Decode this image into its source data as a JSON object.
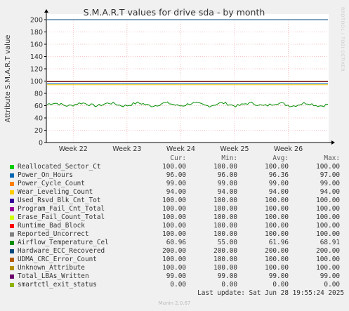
{
  "chart_data": {
    "type": "line",
    "title": "S.M.A.R.T values for drive sda - by month",
    "ylabel": "Attribute S.M.A.R.T value",
    "xlabel": "",
    "ylim": [
      0,
      200
    ],
    "yticks": [
      0,
      20,
      40,
      60,
      80,
      100,
      120,
      140,
      160,
      180,
      200
    ],
    "xticks": [
      "Week 22",
      "Week 23",
      "Week 24",
      "Week 25",
      "Week 26"
    ],
    "x_range_weeks": [
      21.5,
      26.75
    ],
    "grid": true,
    "series": [
      {
        "name": "Reallocated_Sector_Ct",
        "color": "#00cc00",
        "cur": "100.00",
        "min": "100.00",
        "avg": "100.00",
        "max": "100.00",
        "value": 100
      },
      {
        "name": "Power_On_Hours",
        "color": "#0066b3",
        "cur": "96.00",
        "min": "96.00",
        "avg": "96.36",
        "max": "97.00",
        "value": 96
      },
      {
        "name": "Power_Cycle_Count",
        "color": "#ff8000",
        "cur": "99.00",
        "min": "99.00",
        "avg": "99.00",
        "max": "99.00",
        "value": 99
      },
      {
        "name": "Wear_Leveling_Count",
        "color": "#ffcc00",
        "cur": "94.00",
        "min": "94.00",
        "avg": "94.00",
        "max": "94.00",
        "value": 94
      },
      {
        "name": "Used_Rsvd_Blk_Cnt_Tot",
        "color": "#330099",
        "cur": "100.00",
        "min": "100.00",
        "avg": "100.00",
        "max": "100.00",
        "value": 100
      },
      {
        "name": "Program_Fail_Cnt_Total",
        "color": "#990099",
        "cur": "100.00",
        "min": "100.00",
        "avg": "100.00",
        "max": "100.00",
        "value": 100
      },
      {
        "name": "Erase_Fail_Count_Total",
        "color": "#ccff00",
        "cur": "100.00",
        "min": "100.00",
        "avg": "100.00",
        "max": "100.00",
        "value": 100
      },
      {
        "name": "Runtime_Bad_Block",
        "color": "#ff0000",
        "cur": "100.00",
        "min": "100.00",
        "avg": "100.00",
        "max": "100.00",
        "value": 100
      },
      {
        "name": "Reported_Uncorrect",
        "color": "#808080",
        "cur": "100.00",
        "min": "100.00",
        "avg": "100.00",
        "max": "100.00",
        "value": 100
      },
      {
        "name": "Airflow_Temperature_Cel",
        "color": "#008f00",
        "cur": "60.96",
        "min": "55.00",
        "avg": "61.96",
        "max": "68.91",
        "value": 62,
        "noisy": true
      },
      {
        "name": "Hardware_ECC_Recovered",
        "color": "#00487d",
        "cur": "200.00",
        "min": "200.00",
        "avg": "200.00",
        "max": "200.00",
        "value": 200
      },
      {
        "name": "UDMA_CRC_Error_Count",
        "color": "#b35a00",
        "cur": "100.00",
        "min": "100.00",
        "avg": "100.00",
        "max": "100.00",
        "value": 100
      },
      {
        "name": "Unknown_Attribute",
        "color": "#b38f00",
        "cur": "100.00",
        "min": "100.00",
        "avg": "100.00",
        "max": "100.00",
        "value": 100
      },
      {
        "name": "Total_LBAs_Written",
        "color": "#6b006b",
        "cur": "99.00",
        "min": "99.00",
        "avg": "99.00",
        "max": "99.00",
        "value": 99
      },
      {
        "name": "smartctl_exit_status",
        "color": "#8fb300",
        "cur": "0.00",
        "min": "0.00",
        "avg": "0.00",
        "max": "0.00",
        "value": 0
      }
    ]
  },
  "legend": {
    "headers": {
      "cur": "Cur:",
      "min": "Min:",
      "avg": "Avg:",
      "max": "Max:"
    },
    "last_update": "Last update: Sat Jun 28 19:55:24 2025"
  },
  "side_text": "RRDTOOL / TOBI OETIKER",
  "footer": "Munin 2.0.67"
}
